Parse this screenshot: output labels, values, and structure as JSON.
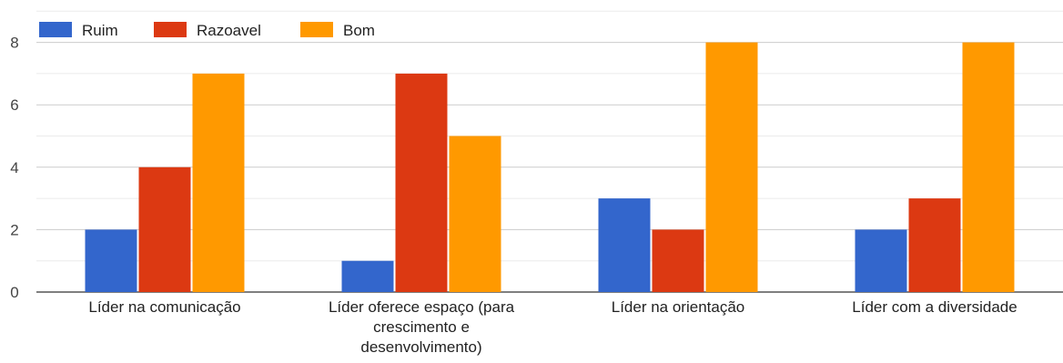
{
  "chart_data": {
    "type": "bar",
    "categories": [
      [
        "Líder na comunicação"
      ],
      [
        "Líder oferece espaço (para",
        "crescimento e",
        "desenvolvimento)"
      ],
      [
        "Líder na orientação"
      ],
      [
        "Líder com a diversidade"
      ]
    ],
    "series": [
      {
        "name": "Ruim",
        "color": "#3366CC",
        "values": [
          2,
          1,
          3,
          2
        ]
      },
      {
        "name": "Razoavel",
        "color": "#DC3912",
        "values": [
          4,
          7,
          2,
          3
        ]
      },
      {
        "name": "Bom",
        "color": "#FF9900",
        "values": [
          7,
          5,
          8,
          8
        ]
      }
    ],
    "yticks": [
      "0",
      "2",
      "4",
      "6",
      "8"
    ],
    "ylim": [
      0,
      8
    ],
    "grid": true,
    "legend": "top-left"
  }
}
